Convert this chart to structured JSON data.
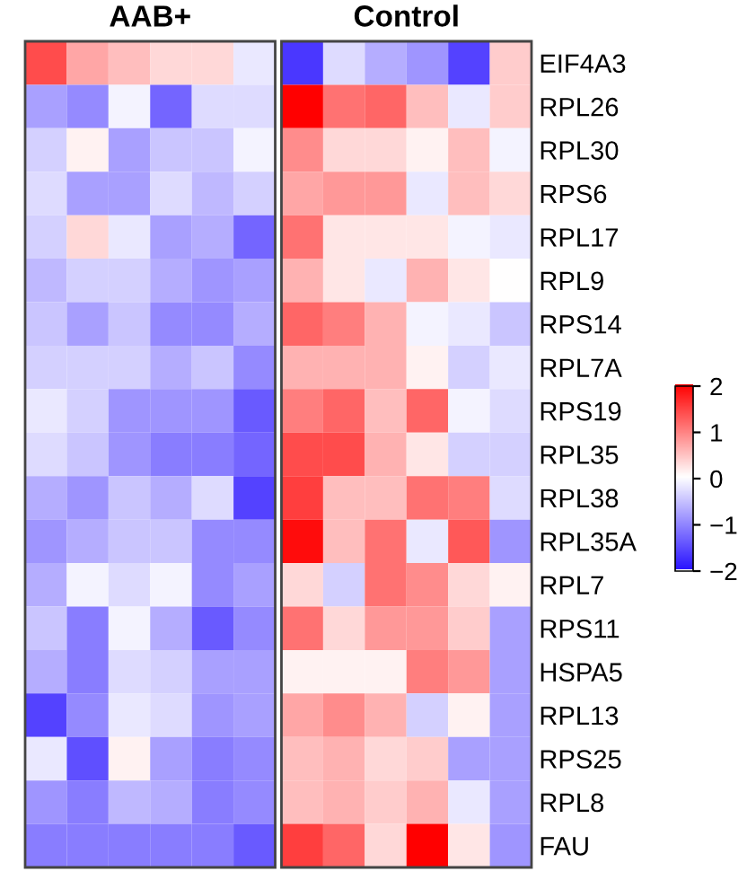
{
  "chart_data": {
    "type": "heatmap",
    "annotations": [
      "AAB+",
      "Control"
    ],
    "categories": [
      null,
      null,
      null,
      null,
      null,
      null,
      null,
      null,
      null,
      null,
      null,
      null
    ],
    "y_categories": [
      "EIF4A3",
      "RPL26",
      "RPL30",
      "RPS6",
      "RPL17",
      "RPL9",
      "RPS14",
      "RPL7A",
      "RPS19",
      "RPL35",
      "RPL38",
      "RPL35A",
      "RPL7",
      "RPS11",
      "HSPA5",
      "RPL13",
      "RPS25",
      "RPL8",
      "FAU"
    ],
    "tick_labels": "y",
    "clim": [
      -2,
      2
    ],
    "cticks": [
      -2,
      -1,
      0,
      1,
      2
    ],
    "cells": [
      [
        1.4,
        0.7,
        0.5,
        0.3,
        0.3,
        -0.2,
        -1.7,
        -0.3,
        -0.7,
        -0.9,
        -1.6,
        0.4
      ],
      [
        -0.8,
        -1.0,
        -0.1,
        -1.3,
        -0.3,
        -0.3,
        2.0,
        1.1,
        1.2,
        0.5,
        -0.2,
        0.4
      ],
      [
        -0.4,
        0.1,
        -0.8,
        -0.5,
        -0.5,
        -0.1,
        0.9,
        0.3,
        0.3,
        0.1,
        0.5,
        -0.1
      ],
      [
        -0.3,
        -0.8,
        -0.8,
        -0.3,
        -0.6,
        -0.4,
        0.7,
        0.8,
        0.8,
        -0.2,
        0.5,
        0.3
      ],
      [
        -0.4,
        0.3,
        -0.2,
        -0.8,
        -0.7,
        -1.3,
        1.1,
        0.2,
        0.2,
        0.2,
        -0.1,
        -0.2
      ],
      [
        -0.6,
        -0.4,
        -0.4,
        -0.7,
        -0.9,
        -0.8,
        0.6,
        0.2,
        -0.2,
        0.6,
        0.2,
        0.0
      ],
      [
        -0.5,
        -0.8,
        -0.5,
        -1.0,
        -1.0,
        -0.7,
        1.2,
        1.0,
        0.6,
        -0.1,
        -0.2,
        -0.5
      ],
      [
        -0.4,
        -0.4,
        -0.4,
        -0.7,
        -0.5,
        -1.0,
        0.6,
        0.6,
        0.6,
        0.1,
        -0.4,
        -0.2
      ],
      [
        -0.2,
        -0.4,
        -0.9,
        -0.9,
        -0.9,
        -1.4,
        1.0,
        1.2,
        0.5,
        1.2,
        -0.1,
        -0.3
      ],
      [
        -0.3,
        -0.5,
        -0.9,
        -1.1,
        -1.1,
        -1.3,
        1.4,
        1.4,
        0.6,
        0.2,
        -0.4,
        -0.4
      ],
      [
        -0.7,
        -0.9,
        -0.5,
        -0.7,
        -0.3,
        -1.6,
        1.5,
        0.5,
        0.5,
        1.1,
        1.0,
        -0.3
      ],
      [
        -0.9,
        -0.7,
        -0.5,
        -0.5,
        -1.0,
        -1.0,
        1.9,
        0.5,
        1.1,
        -0.2,
        1.3,
        -0.9
      ],
      [
        -0.7,
        -0.1,
        -0.3,
        -0.1,
        -1.0,
        -0.8,
        0.3,
        -0.4,
        1.1,
        0.9,
        0.3,
        0.1
      ],
      [
        -0.5,
        -1.1,
        -0.1,
        -0.7,
        -1.4,
        -1.0,
        1.1,
        0.3,
        0.8,
        0.8,
        0.4,
        -0.8
      ],
      [
        -0.7,
        -1.1,
        -0.3,
        -0.4,
        -0.8,
        -0.8,
        0.1,
        0.1,
        0.1,
        1.0,
        0.8,
        -0.8
      ],
      [
        -1.6,
        -1.0,
        -0.2,
        -0.3,
        -0.9,
        -0.8,
        0.7,
        0.9,
        0.6,
        -0.4,
        0.1,
        -0.8
      ],
      [
        -0.2,
        -1.5,
        0.1,
        -0.8,
        -1.1,
        -1.0,
        0.5,
        0.6,
        0.3,
        0.4,
        -0.8,
        -0.8
      ],
      [
        -0.9,
        -1.1,
        -0.6,
        -0.7,
        -1.1,
        -1.0,
        0.5,
        0.6,
        0.4,
        0.6,
        -0.2,
        -0.8
      ],
      [
        -1.1,
        -1.1,
        -1.1,
        -1.1,
        -1.1,
        -1.4,
        1.5,
        1.2,
        0.3,
        2.0,
        0.2,
        -0.9
      ]
    ]
  }
}
